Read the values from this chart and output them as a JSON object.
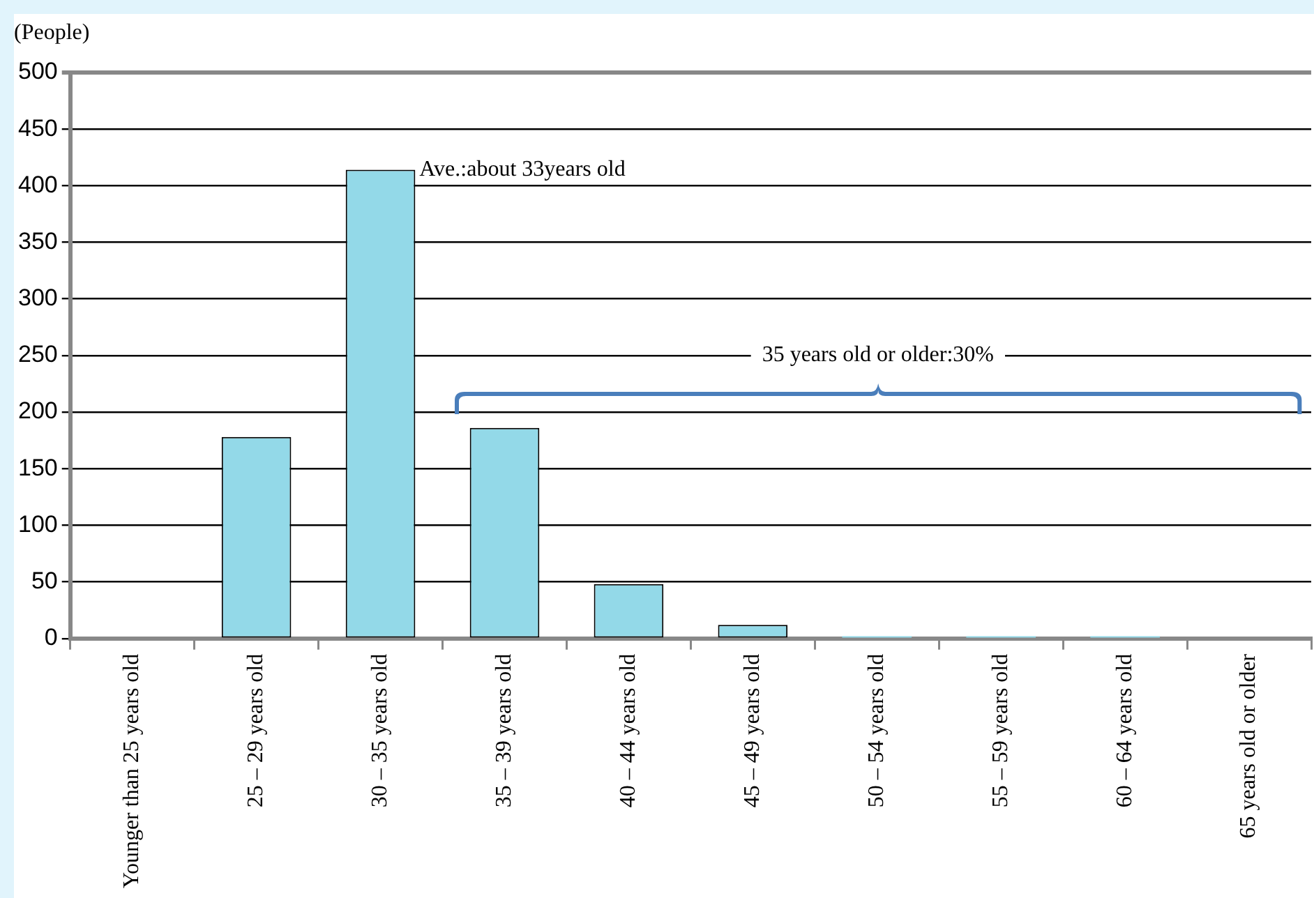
{
  "chart_data": {
    "type": "bar",
    "ylabel": "(People)",
    "categories": [
      "Younger than 25 years old",
      "25 – 29 years old",
      "30 – 35 years old",
      "35 – 39 years old",
      "40 – 44 years old",
      "45 – 49 years old",
      "50 – 54 years old",
      "55 – 59 years old",
      "60 – 64 years old",
      "65 years old or older"
    ],
    "values": [
      0,
      178,
      414,
      186,
      48,
      12,
      2,
      2,
      2,
      0
    ],
    "color": "#93d9e8",
    "ylim": [
      0,
      500
    ],
    "yticks": [
      0,
      50,
      100,
      150,
      200,
      250,
      300,
      350,
      400,
      450,
      500
    ],
    "grid": "y",
    "legend": false,
    "annotations": [
      "Ave.:about 33years old",
      "35 years old or older:30%"
    ]
  }
}
